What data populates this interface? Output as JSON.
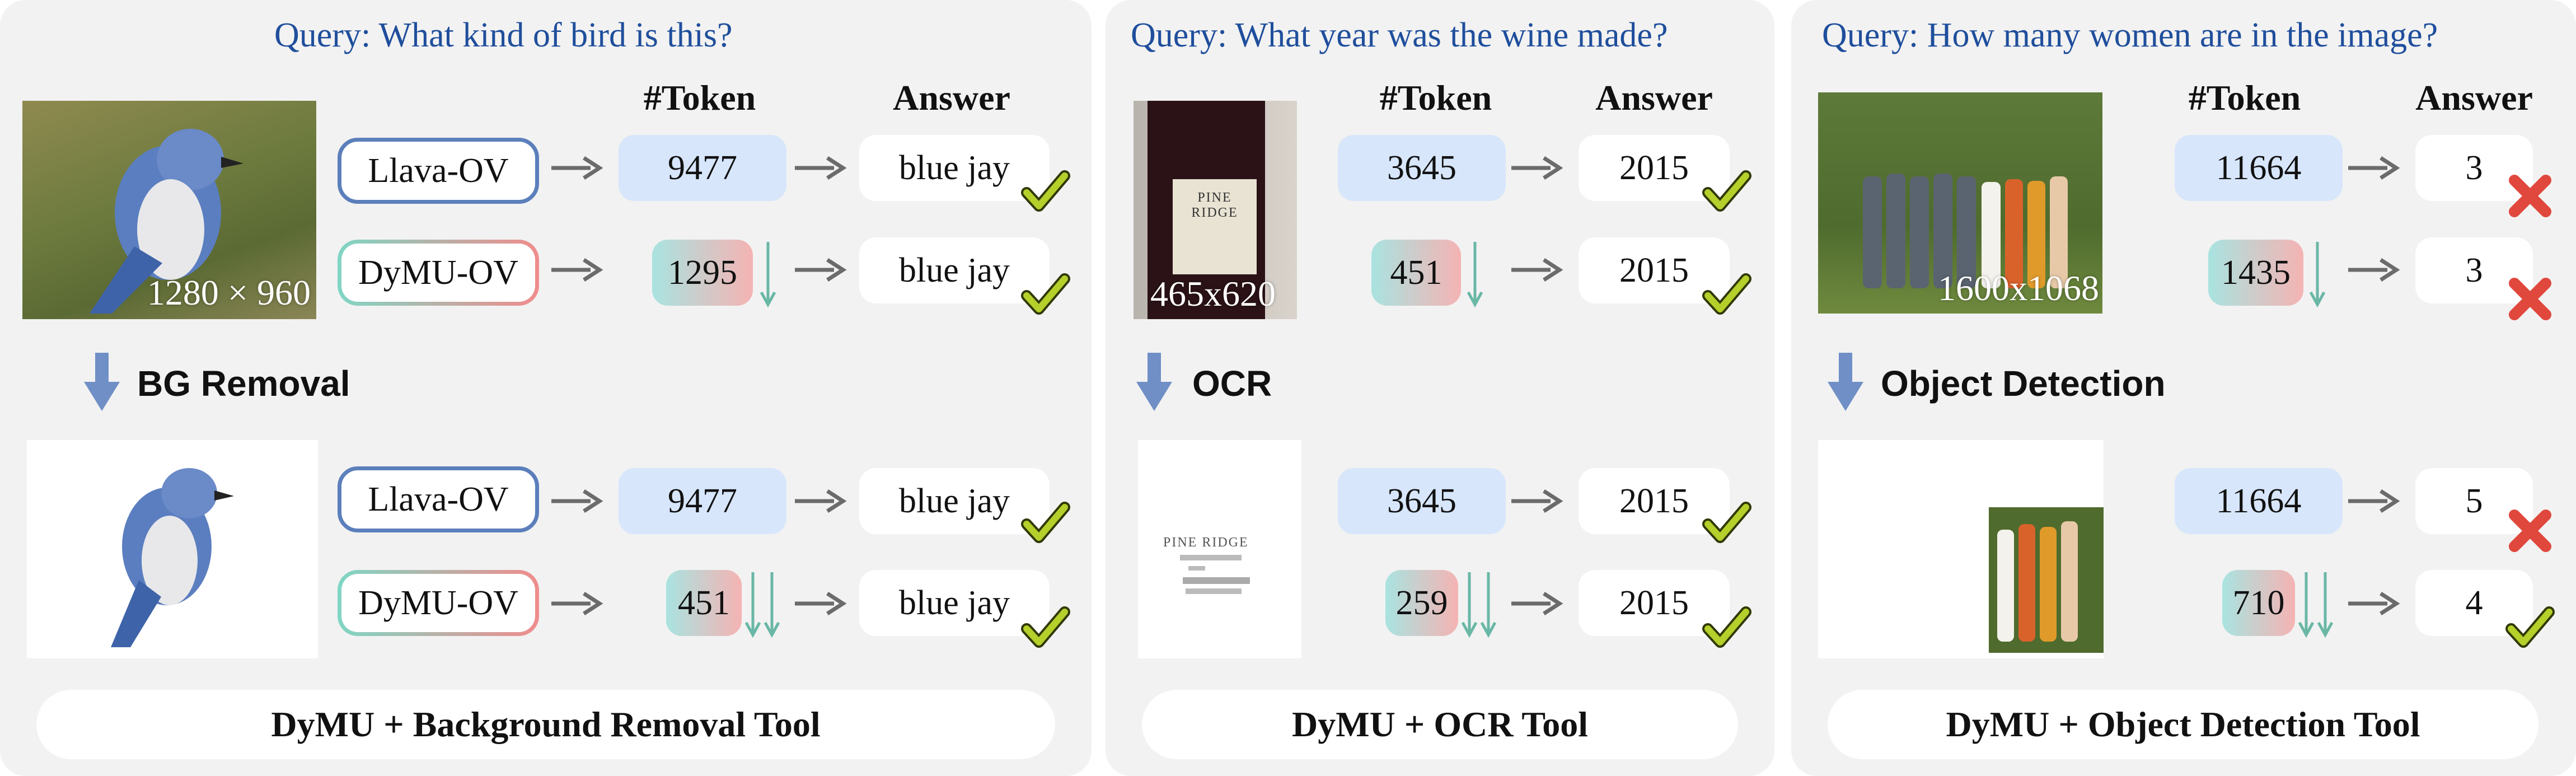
{
  "headers": {
    "tokens": "#Token",
    "answer": "Answer"
  },
  "models": {
    "llava": "Llava-OV",
    "dymu": "DyMU-OV"
  },
  "panels": [
    {
      "query": "Query: What kind of bird is this?",
      "image_size": "1280 × 960",
      "top": {
        "llava_tokens": "9477",
        "llava_answer": "blue jay",
        "dymu_tokens": "1295",
        "dymu_answer": "blue jay"
      },
      "tool_step": "BG Removal",
      "bottom": {
        "llava_tokens": "9477",
        "llava_answer": "blue jay",
        "dymu_tokens": "451",
        "dymu_answer": "blue jay"
      },
      "footer": "DyMU + Background Removal Tool"
    },
    {
      "query": "Query: What year was the wine made?",
      "image_size": "465x620",
      "top": {
        "llava_tokens": "3645",
        "llava_answer": "2015",
        "dymu_tokens": "451",
        "dymu_answer": "2015"
      },
      "tool_step": "OCR",
      "bottom": {
        "llava_tokens": "3645",
        "llava_answer": "2015",
        "dymu_tokens": "259",
        "dymu_answer": "2015"
      },
      "footer": "DyMU + OCR Tool",
      "label_text": "PINE RIDGE"
    },
    {
      "query": "Query: How many women are in the image?",
      "image_size": "1600x1068",
      "top": {
        "llava_tokens": "11664",
        "llava_answer": "3",
        "dymu_tokens": "1435",
        "dymu_answer": "3"
      },
      "tool_step": "Object Detection",
      "bottom": {
        "llava_tokens": "11664",
        "llava_answer": "5",
        "dymu_tokens": "710",
        "dymu_answer": "4"
      },
      "footer": "DyMU + Object Detection Tool"
    }
  ],
  "colors": {
    "query": "#1f4e9c",
    "correct": "#b5cf2b",
    "wrong": "#e0483d",
    "down_arrow": "#6ab7a6",
    "step_arrow": "#6f8fc6"
  }
}
